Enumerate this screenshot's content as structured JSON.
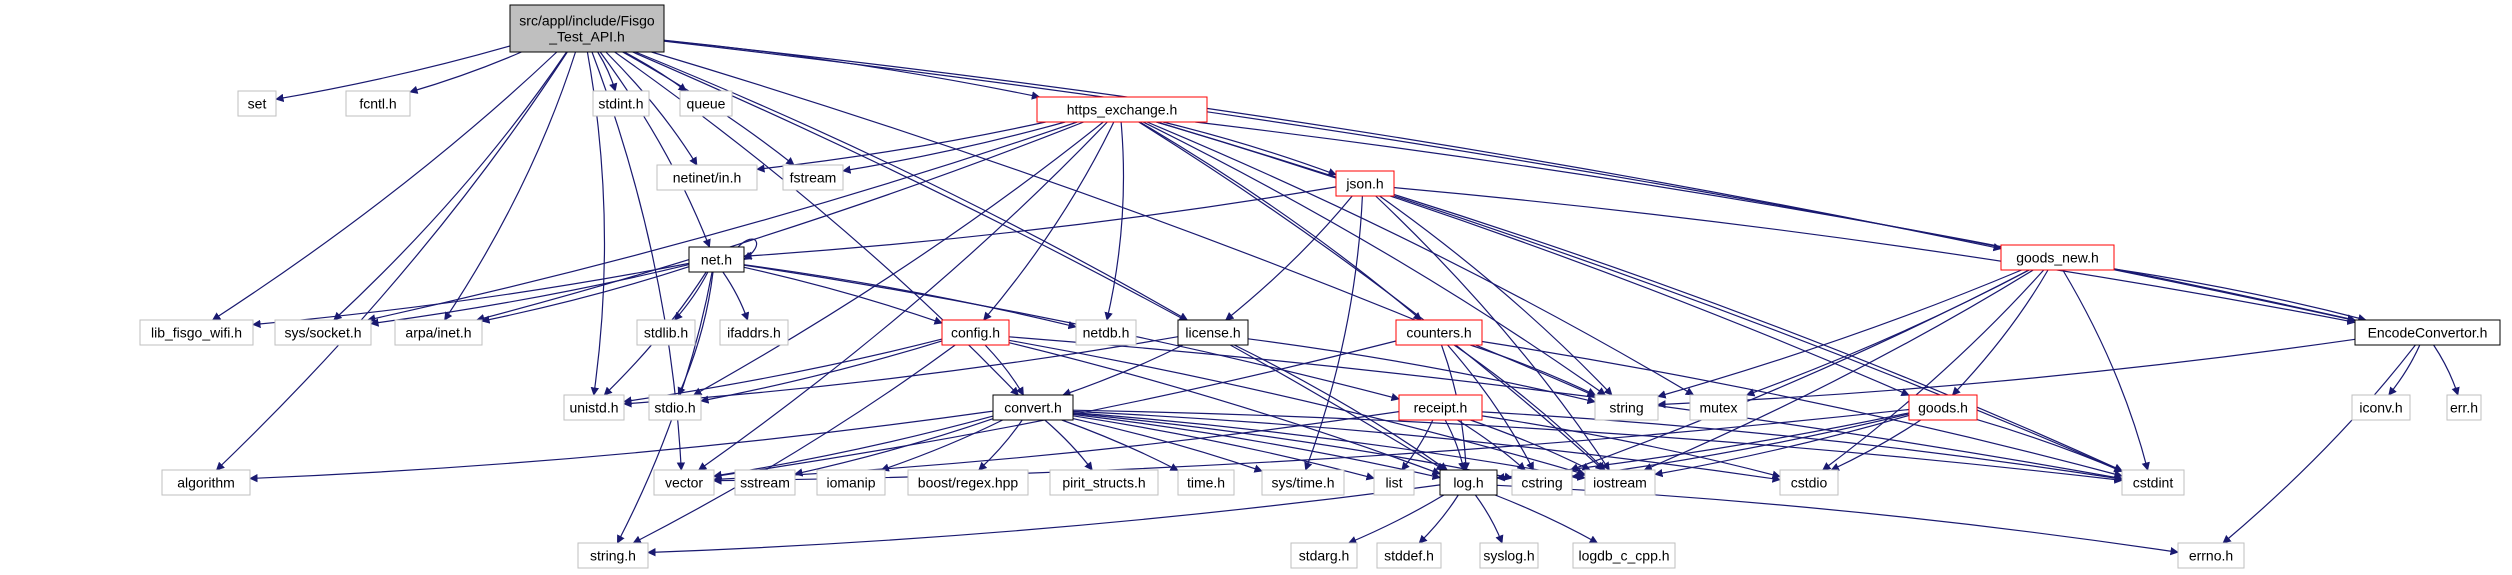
{
  "colors": {
    "edge": "#191970",
    "gray_border": "#bfbfbf",
    "red_border": "#ff0000",
    "black_border": "#000000",
    "root_fill": "#bfbfbf",
    "label_gray": "#000000"
  },
  "nodes": {
    "root": {
      "label": [
        "src/appl/include/Fisgo",
        "_Test_API.h"
      ],
      "kind": "root"
    },
    "set": {
      "label": [
        "set"
      ],
      "kind": "gray"
    },
    "fcntl": {
      "label": [
        "fcntl.h"
      ],
      "kind": "gray"
    },
    "stdint": {
      "label": [
        "stdint.h"
      ],
      "kind": "gray"
    },
    "queue": {
      "label": [
        "queue"
      ],
      "kind": "gray"
    },
    "https": {
      "label": [
        "https_exchange.h"
      ],
      "kind": "red"
    },
    "netinet": {
      "label": [
        "netinet/in.h"
      ],
      "kind": "gray"
    },
    "fstream": {
      "label": [
        "fstream"
      ],
      "kind": "gray"
    },
    "json": {
      "label": [
        "json.h"
      ],
      "kind": "red"
    },
    "goods_new": {
      "label": [
        "goods_new.h"
      ],
      "kind": "red"
    },
    "net": {
      "label": [
        "net.h"
      ],
      "kind": "black"
    },
    "libfisgo": {
      "label": [
        "lib_fisgo_wifi.h"
      ],
      "kind": "gray"
    },
    "syssocket": {
      "label": [
        "sys/socket.h"
      ],
      "kind": "gray"
    },
    "arpainet": {
      "label": [
        "arpa/inet.h"
      ],
      "kind": "gray"
    },
    "stdlib": {
      "label": [
        "stdlib.h"
      ],
      "kind": "gray"
    },
    "ifaddrs": {
      "label": [
        "ifaddrs.h"
      ],
      "kind": "gray"
    },
    "config": {
      "label": [
        "config.h"
      ],
      "kind": "red"
    },
    "netdb": {
      "label": [
        "netdb.h"
      ],
      "kind": "gray"
    },
    "license": {
      "label": [
        "license.h"
      ],
      "kind": "black"
    },
    "counters": {
      "label": [
        "counters.h"
      ],
      "kind": "red"
    },
    "encode": {
      "label": [
        "EncodeConvertor.h"
      ],
      "kind": "black"
    },
    "unistd": {
      "label": [
        "unistd.h"
      ],
      "kind": "gray"
    },
    "stdio": {
      "label": [
        "stdio.h"
      ],
      "kind": "gray"
    },
    "convert": {
      "label": [
        "convert.h"
      ],
      "kind": "black"
    },
    "receipt": {
      "label": [
        "receipt.h"
      ],
      "kind": "red"
    },
    "string": {
      "label": [
        "string"
      ],
      "kind": "gray"
    },
    "mutex": {
      "label": [
        "mutex"
      ],
      "kind": "gray"
    },
    "goods": {
      "label": [
        "goods.h"
      ],
      "kind": "red"
    },
    "iconv": {
      "label": [
        "iconv.h"
      ],
      "kind": "gray"
    },
    "err": {
      "label": [
        "err.h"
      ],
      "kind": "gray"
    },
    "algorithm": {
      "label": [
        "algorithm"
      ],
      "kind": "gray"
    },
    "vector": {
      "label": [
        "vector"
      ],
      "kind": "gray"
    },
    "sstream": {
      "label": [
        "sstream"
      ],
      "kind": "gray"
    },
    "iomanip": {
      "label": [
        "iomanip"
      ],
      "kind": "gray"
    },
    "boostregex": {
      "label": [
        "boost/regex.hpp"
      ],
      "kind": "gray"
    },
    "pirit": {
      "label": [
        "pirit_structs.h"
      ],
      "kind": "gray"
    },
    "timeh": {
      "label": [
        "time.h"
      ],
      "kind": "gray"
    },
    "systime": {
      "label": [
        "sys/time.h"
      ],
      "kind": "gray"
    },
    "list": {
      "label": [
        "list"
      ],
      "kind": "gray"
    },
    "log": {
      "label": [
        "log.h"
      ],
      "kind": "black"
    },
    "cstring": {
      "label": [
        "cstring"
      ],
      "kind": "gray"
    },
    "iostream": {
      "label": [
        "iostream"
      ],
      "kind": "gray"
    },
    "cstdio": {
      "label": [
        "cstdio"
      ],
      "kind": "gray"
    },
    "cstdint": {
      "label": [
        "cstdint"
      ],
      "kind": "gray"
    },
    "stringh": {
      "label": [
        "string.h"
      ],
      "kind": "gray"
    },
    "stdarg": {
      "label": [
        "stdarg.h"
      ],
      "kind": "gray"
    },
    "stddef": {
      "label": [
        "stddef.h"
      ],
      "kind": "gray"
    },
    "syslog": {
      "label": [
        "syslog.h"
      ],
      "kind": "gray"
    },
    "logdb": {
      "label": [
        "logdb_c_cpp.h"
      ],
      "kind": "gray"
    },
    "errno": {
      "label": [
        "errno.h"
      ],
      "kind": "gray"
    }
  },
  "edges": [
    [
      "root",
      "set"
    ],
    [
      "root",
      "fcntl"
    ],
    [
      "root",
      "stdint"
    ],
    [
      "root",
      "queue"
    ],
    [
      "root",
      "https"
    ],
    [
      "root",
      "netinet"
    ],
    [
      "root",
      "fstream"
    ],
    [
      "root",
      "goods_new"
    ],
    [
      "root",
      "net"
    ],
    [
      "root",
      "libfisgo"
    ],
    [
      "root",
      "syssocket"
    ],
    [
      "root",
      "arpainet"
    ],
    [
      "root",
      "license"
    ],
    [
      "root",
      "encode"
    ],
    [
      "root",
      "unistd"
    ],
    [
      "root",
      "convert"
    ],
    [
      "root",
      "string"
    ],
    [
      "root",
      "algorithm"
    ],
    [
      "root",
      "vector"
    ],
    [
      "root",
      "log"
    ],
    [
      "https",
      "netinet"
    ],
    [
      "https",
      "fstream"
    ],
    [
      "https",
      "json"
    ],
    [
      "https",
      "syssocket"
    ],
    [
      "https",
      "arpainet"
    ],
    [
      "https",
      "config"
    ],
    [
      "https",
      "netdb"
    ],
    [
      "https",
      "counters"
    ],
    [
      "https",
      "stdio"
    ],
    [
      "https",
      "string"
    ],
    [
      "https",
      "mutex"
    ],
    [
      "https",
      "goods"
    ],
    [
      "https",
      "iostream"
    ],
    [
      "https",
      "encode"
    ],
    [
      "https",
      "cstdint"
    ],
    [
      "https",
      "vector"
    ],
    [
      "json",
      "net"
    ],
    [
      "json",
      "license"
    ],
    [
      "json",
      "string"
    ],
    [
      "json",
      "systime"
    ],
    [
      "json",
      "iostream"
    ],
    [
      "json",
      "encode"
    ],
    [
      "json",
      "cstdint"
    ],
    [
      "goods_new",
      "encode"
    ],
    [
      "goods_new",
      "string"
    ],
    [
      "goods_new",
      "mutex"
    ],
    [
      "goods_new",
      "goods"
    ],
    [
      "goods_new",
      "cstdint"
    ],
    [
      "goods_new",
      "iostream"
    ],
    [
      "goods_new",
      "cstdio"
    ],
    [
      "goods_new",
      "cstring"
    ],
    [
      "net",
      "net"
    ],
    [
      "net",
      "libfisgo"
    ],
    [
      "net",
      "syssocket"
    ],
    [
      "net",
      "arpainet"
    ],
    [
      "net",
      "stdlib"
    ],
    [
      "net",
      "ifaddrs"
    ],
    [
      "net",
      "config"
    ],
    [
      "net",
      "netdb"
    ],
    [
      "net",
      "unistd"
    ],
    [
      "net",
      "stdio"
    ],
    [
      "net",
      "stringh"
    ],
    [
      "net",
      "receipt"
    ],
    [
      "config",
      "unistd"
    ],
    [
      "config",
      "stdio"
    ],
    [
      "config",
      "convert"
    ],
    [
      "config",
      "log"
    ],
    [
      "config",
      "iostream"
    ],
    [
      "config",
      "stringh"
    ],
    [
      "config",
      "cstdint"
    ],
    [
      "license",
      "unistd"
    ],
    [
      "license",
      "convert"
    ],
    [
      "license",
      "log"
    ],
    [
      "license",
      "string"
    ],
    [
      "counters",
      "vector"
    ],
    [
      "counters",
      "log"
    ],
    [
      "counters",
      "string"
    ],
    [
      "counters",
      "iostream"
    ],
    [
      "counters",
      "cstdint"
    ],
    [
      "counters",
      "cstring"
    ],
    [
      "encode",
      "string"
    ],
    [
      "encode",
      "iconv"
    ],
    [
      "encode",
      "err"
    ],
    [
      "encode",
      "errno"
    ],
    [
      "convert",
      "algorithm"
    ],
    [
      "convert",
      "vector"
    ],
    [
      "convert",
      "sstream"
    ],
    [
      "convert",
      "iomanip"
    ],
    [
      "convert",
      "boostregex"
    ],
    [
      "convert",
      "pirit"
    ],
    [
      "convert",
      "timeh"
    ],
    [
      "convert",
      "systime"
    ],
    [
      "convert",
      "list"
    ],
    [
      "convert",
      "log"
    ],
    [
      "convert",
      "cstring"
    ],
    [
      "convert",
      "iostream"
    ],
    [
      "convert",
      "cstdio"
    ],
    [
      "convert",
      "cstdint"
    ],
    [
      "receipt",
      "vector"
    ],
    [
      "receipt",
      "list"
    ],
    [
      "receipt",
      "log"
    ],
    [
      "receipt",
      "iostream"
    ],
    [
      "receipt",
      "cstdio"
    ],
    [
      "receipt",
      "cstdint"
    ],
    [
      "receipt",
      "cstring"
    ],
    [
      "goods",
      "vector"
    ],
    [
      "goods",
      "log"
    ],
    [
      "goods",
      "iostream"
    ],
    [
      "goods",
      "cstdio"
    ],
    [
      "goods",
      "cstdint"
    ],
    [
      "goods",
      "cstring"
    ],
    [
      "log",
      "stringh"
    ],
    [
      "log",
      "stdarg"
    ],
    [
      "log",
      "stddef"
    ],
    [
      "log",
      "syslog"
    ],
    [
      "log",
      "logdb"
    ],
    [
      "log",
      "errno"
    ]
  ]
}
